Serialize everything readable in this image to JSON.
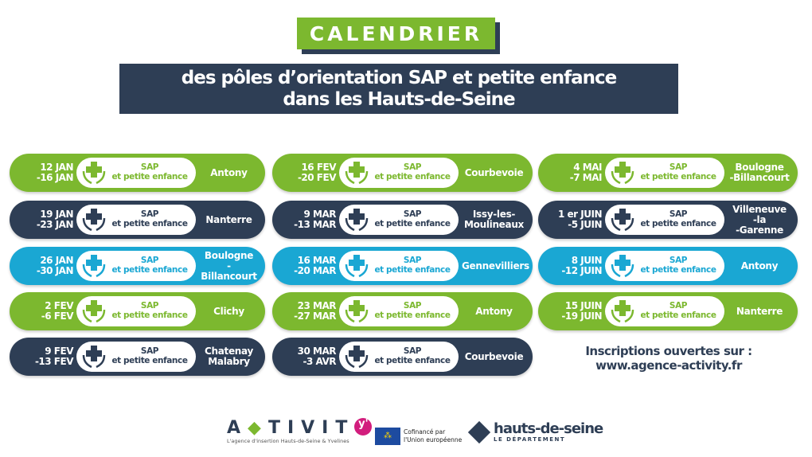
{
  "header": {
    "title": "CALENDRIER",
    "subtitle_line1": "des pôles d’orientation SAP et  petite enfance",
    "subtitle_line2": "dans les Hauts-de-Seine"
  },
  "colors": {
    "green": "#7cb82f",
    "navy": "#2e3e55",
    "cyan": "#1aa7d3"
  },
  "badge": {
    "line1": "SAP",
    "line2": "et petite enfance",
    "icon": "hands-cross-icon"
  },
  "columns": [
    [
      {
        "d1": "12 JAN",
        "d2": "-16 JAN",
        "loc": [
          "Antony"
        ],
        "color": "green"
      },
      {
        "d1": "19 JAN",
        "d2": "-23 JAN",
        "loc": [
          "Nanterre"
        ],
        "color": "navy"
      },
      {
        "d1": "26 JAN",
        "d2": "-30 JAN",
        "loc": [
          "Boulogne",
          "-Billancourt"
        ],
        "color": "cyan"
      },
      {
        "d1": "2 FEV",
        "d2": "-6 FEV",
        "loc": [
          "Clichy"
        ],
        "color": "green"
      },
      {
        "d1": "9 FEV",
        "d2": "-13 FEV",
        "loc": [
          "Chatenay",
          "Malabry"
        ],
        "color": "navy"
      }
    ],
    [
      {
        "d1": "16 FEV",
        "d2": "-20 FEV",
        "loc": [
          "Courbevoie"
        ],
        "color": "green"
      },
      {
        "d1": "9 MAR",
        "d2": "-13 MAR",
        "loc": [
          "Issy-les-",
          "Moulineaux"
        ],
        "color": "navy"
      },
      {
        "d1": "16 MAR",
        "d2": "-20 MAR",
        "loc": [
          "Gennevilliers"
        ],
        "color": "cyan"
      },
      {
        "d1": "23 MAR",
        "d2": "-27 MAR",
        "loc": [
          "Antony"
        ],
        "color": "green"
      },
      {
        "d1": "30 MAR",
        "d2": "-3 AVR",
        "loc": [
          "Courbevoie"
        ],
        "color": "navy"
      }
    ],
    [
      {
        "d1": "4 MAI",
        "d2": "-7 MAI",
        "loc": [
          "Boulogne",
          "-Billancourt"
        ],
        "color": "green"
      },
      {
        "d1": "1 er JUIN",
        "d2": "-5 JUIN",
        "loc": [
          "Villeneuve",
          "-la",
          "-Garenne"
        ],
        "color": "navy"
      },
      {
        "d1": "8 JUIN",
        "d2": "-12 JUIN",
        "loc": [
          "Antony"
        ],
        "color": "cyan"
      },
      {
        "d1": "15 JUIN",
        "d2": "-19 JUIN",
        "loc": [
          "Nanterre"
        ],
        "color": "green"
      }
    ]
  ],
  "inscriptions": {
    "line1": "Inscriptions ouvertes sur :",
    "line2": "www.agence-activity.fr"
  },
  "footer": {
    "activity_logo": "ACTIVITY",
    "activity_tagline": "L'agence d'insertion Hauts-de-Seine & Yvelines",
    "eu_line1": "Cofinancé par",
    "eu_line2": "l'Union européenne",
    "hds_name": "hauts-de-seine",
    "hds_sub": "LE DÉPARTEMENT"
  }
}
